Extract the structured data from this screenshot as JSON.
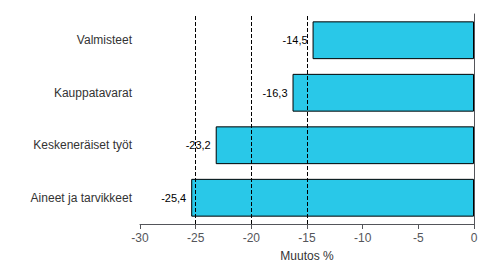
{
  "chart_data": {
    "type": "bar",
    "orientation": "horizontal",
    "categories": [
      "Aineet ja tarvikkeet",
      "Keskeneräiset työt",
      "Kauppatavarat",
      "Valmisteet"
    ],
    "values": [
      -25.4,
      -23.2,
      -16.3,
      -14.5
    ],
    "value_labels": [
      "-25,4",
      "-23,2",
      "-16,3",
      "-14,5"
    ],
    "data_labels": true,
    "color": "#29c8e8",
    "xlabel": "Muutos %",
    "xlim": [
      -30,
      0
    ],
    "xticks": [
      -30,
      -25,
      -20,
      -15,
      -10,
      -5,
      0
    ],
    "reference_lines": [
      -25,
      -20,
      -15
    ],
    "grid": false
  }
}
